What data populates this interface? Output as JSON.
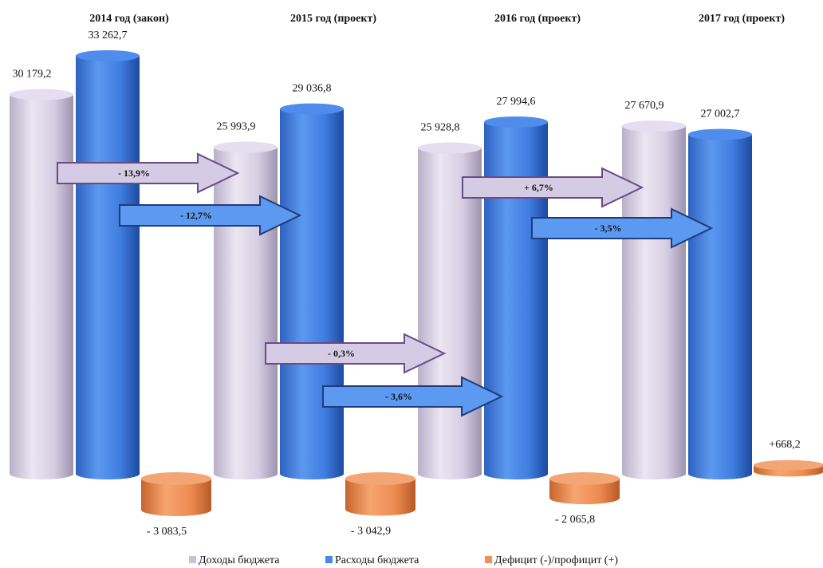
{
  "chart_data": {
    "type": "bar",
    "categories": [
      "2014 год (закон)",
      "2015 год (проект)",
      "2016 год (проект)",
      "2017 год (проект)"
    ],
    "series": [
      {
        "name": "Доходы бюджета",
        "values": [
          30179.2,
          25993.9,
          25928.8,
          27670.9
        ],
        "labels": [
          "30 179,2",
          "25 993,9",
          "25 928,8",
          "27 670,9"
        ]
      },
      {
        "name": "Расходы бюджета",
        "values": [
          33262.7,
          29036.8,
          27994.6,
          27002.7
        ],
        "labels": [
          "33 262,7",
          "29 036,8",
          "27 994,6",
          "27 002,7"
        ]
      },
      {
        "name": "Дефицит (-)/профицит (+)",
        "values": [
          -3083.5,
          -3042.9,
          -2065.8,
          668.2
        ],
        "labels": [
          "- 3 083,5",
          "- 3 042,9",
          "- 2 065,8",
          "+668,2"
        ]
      }
    ],
    "change_arrows": [
      {
        "series": "Доходы бюджета",
        "from": "2014 год (закон)",
        "to": "2015 год (проект)",
        "label": "- 13,9%"
      },
      {
        "series": "Расходы бюджета",
        "from": "2014 год (закон)",
        "to": "2015 год (проект)",
        "label": "- 12,7%"
      },
      {
        "series": "Доходы бюджета",
        "from": "2015 год (проект)",
        "to": "2016 год (проект)",
        "label": "- 0,3%"
      },
      {
        "series": "Расходы бюджета",
        "from": "2015 год (проект)",
        "to": "2016 год (проект)",
        "label": "- 3,6%"
      },
      {
        "series": "Доходы бюджета",
        "from": "2016 год (проект)",
        "to": "2017 год (проект)",
        "label": "+ 6,7%"
      },
      {
        "series": "Расходы бюджета",
        "from": "2016 год (проект)",
        "to": "2017 год (проект)",
        "label": "- 3,5%"
      }
    ],
    "colors": {
      "income": "#d8d0e6",
      "expense": "#4a86e8",
      "deficit": "#f0915a",
      "arrow_income_fill": "#d6cbe4",
      "arrow_income_stroke": "#6a4c85",
      "arrow_expense_fill": "#5b9af0",
      "arrow_expense_stroke": "#1f3d7a"
    },
    "legend_position": "bottom",
    "grid": false,
    "ylim": [
      -3500,
      33500
    ]
  }
}
